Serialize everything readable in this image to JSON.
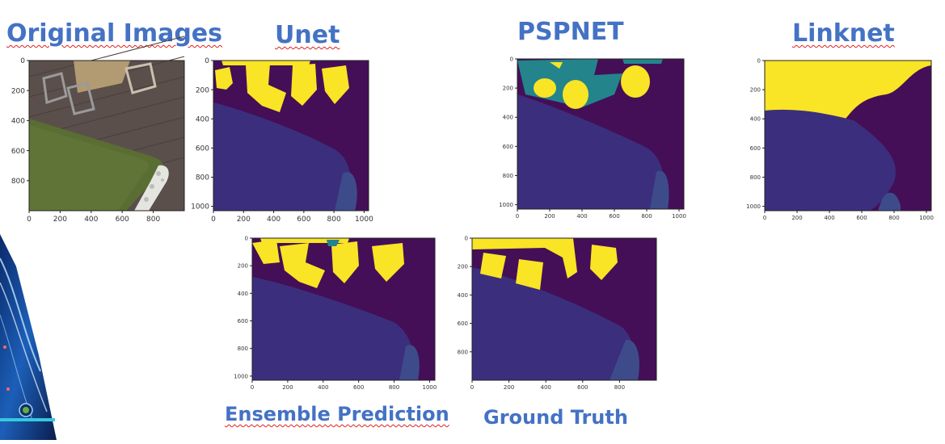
{
  "slide": {
    "titles": {
      "original": "Original Images",
      "unet": "Unet",
      "pspnet": "PSPNET",
      "linknet": "Linknet",
      "ensemble": "Ensemble Prediction",
      "ground_truth": "Ground Truth"
    },
    "colors": {
      "title_blue": "#4472c4",
      "mask_bg": "#440f57",
      "mask_region": "#3b2f7d",
      "mask_object": "#f9e425",
      "mask_teal": "#23848c",
      "grass": "#5a6d32",
      "deck": "#5b4f4b"
    },
    "panels": {
      "original": {
        "x_ticks": [
          "0",
          "200",
          "400",
          "600",
          "800"
        ],
        "y_ticks": [
          "0",
          "200",
          "400",
          "600",
          "800"
        ]
      },
      "unet": {
        "x_ticks": [
          "0",
          "200",
          "400",
          "600",
          "800",
          "1000"
        ],
        "y_ticks": [
          "0",
          "200",
          "400",
          "600",
          "800",
          "1000"
        ]
      },
      "pspnet": {
        "x_ticks": [
          "0",
          "200",
          "400",
          "600",
          "800",
          "1000"
        ],
        "y_ticks": [
          "0",
          "200",
          "400",
          "600",
          "800",
          "1000"
        ]
      },
      "linknet": {
        "x_ticks": [
          "0",
          "200",
          "400",
          "600",
          "800",
          "1000"
        ],
        "y_ticks": [
          "0",
          "200",
          "400",
          "600",
          "800",
          "1000"
        ]
      },
      "ensemble": {
        "x_ticks": [
          "0",
          "200",
          "400",
          "600",
          "800",
          "1000"
        ],
        "y_ticks": [
          "0",
          "200",
          "400",
          "600",
          "800",
          "1000"
        ]
      },
      "ground_truth": {
        "x_ticks": [
          "0",
          "200",
          "400",
          "600",
          "800"
        ],
        "y_ticks": [
          "0",
          "200",
          "400",
          "600",
          "800"
        ]
      }
    }
  }
}
